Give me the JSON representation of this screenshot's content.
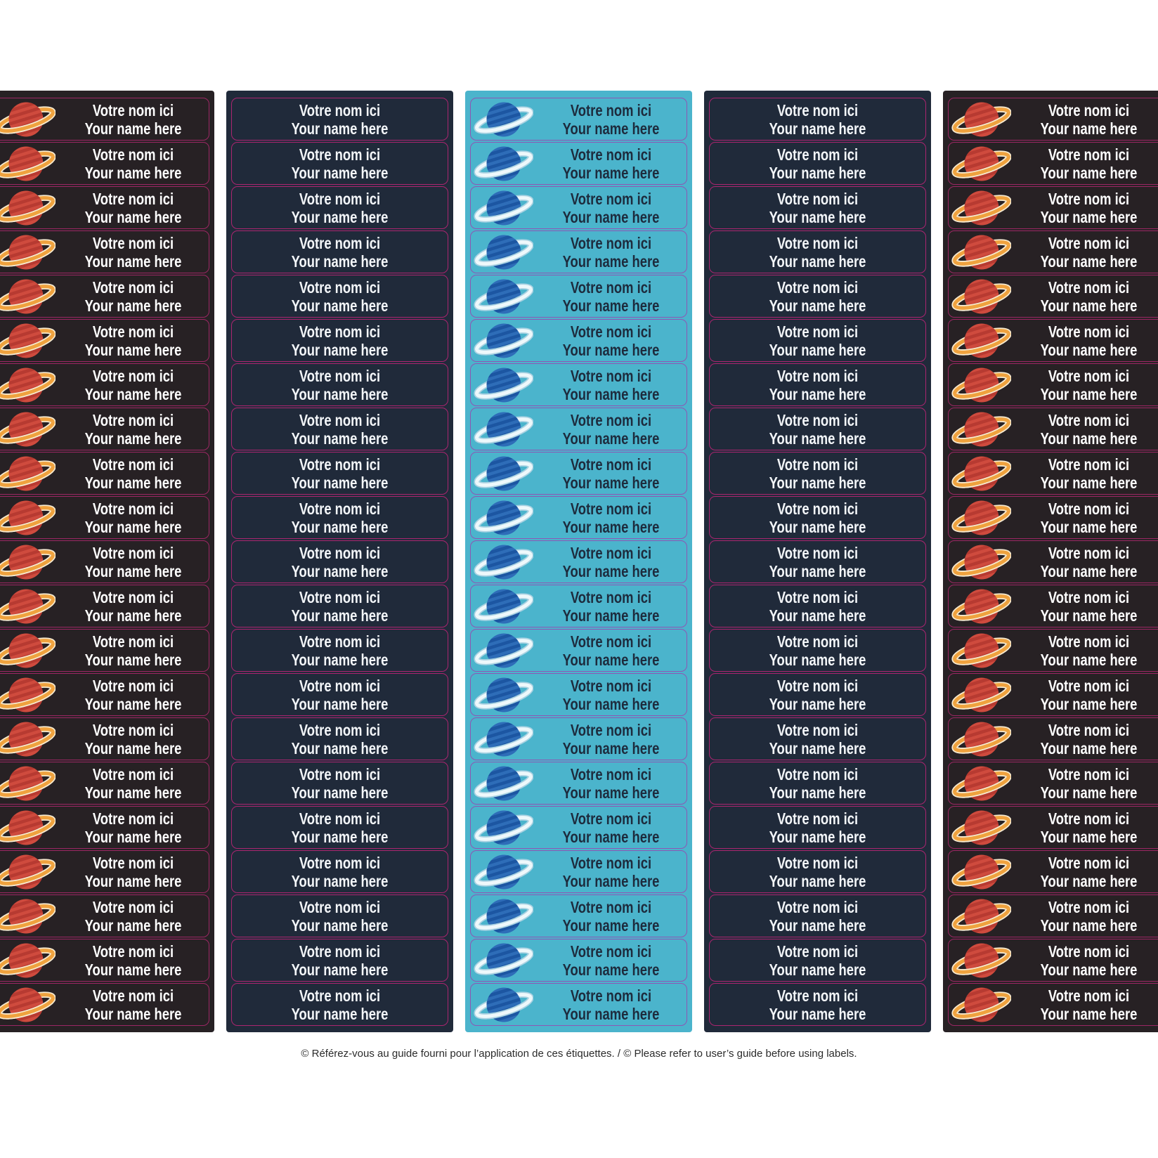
{
  "sheet": {
    "label": {
      "line1": "Votre nom ici",
      "line2": "Your name here"
    },
    "rows_per_column": 21,
    "columns": [
      {
        "id": "column-1",
        "theme": "dark",
        "icon": "saturn-red-icon"
      },
      {
        "id": "column-2",
        "theme": "navy",
        "icon": null
      },
      {
        "id": "column-3",
        "theme": "cyan",
        "icon": "saturn-blue-icon"
      },
      {
        "id": "column-4",
        "theme": "navy",
        "icon": null
      },
      {
        "id": "column-5",
        "theme": "dark",
        "icon": "saturn-red-icon"
      }
    ],
    "themes": {
      "dark": {
        "bg": "#272124",
        "border": "#9c2764",
        "text": "#ffffff"
      },
      "navy": {
        "bg": "#202a3a",
        "border": "#ab2570",
        "text": "#f3f6f9"
      },
      "cyan": {
        "bg": "#4bb4cc",
        "border": "#8e56b4",
        "text": "#1d2b3d"
      }
    },
    "icons": {
      "saturn-red-icon": {
        "planet": "#cf4b3e",
        "stripes": "#b73a31",
        "ring": "#efa23e",
        "ring_edge": "#f6ead0"
      },
      "saturn-blue-icon": {
        "planet": "#2e6db8",
        "stripes": "#1c56a2",
        "ring": "#eef8fb",
        "ring_edge": "#a9d2e2"
      }
    }
  },
  "footer": {
    "text": "© Référez-vous au guide fourni pour l’application de ces étiquettes. / © Please refer to user’s guide before using labels."
  }
}
